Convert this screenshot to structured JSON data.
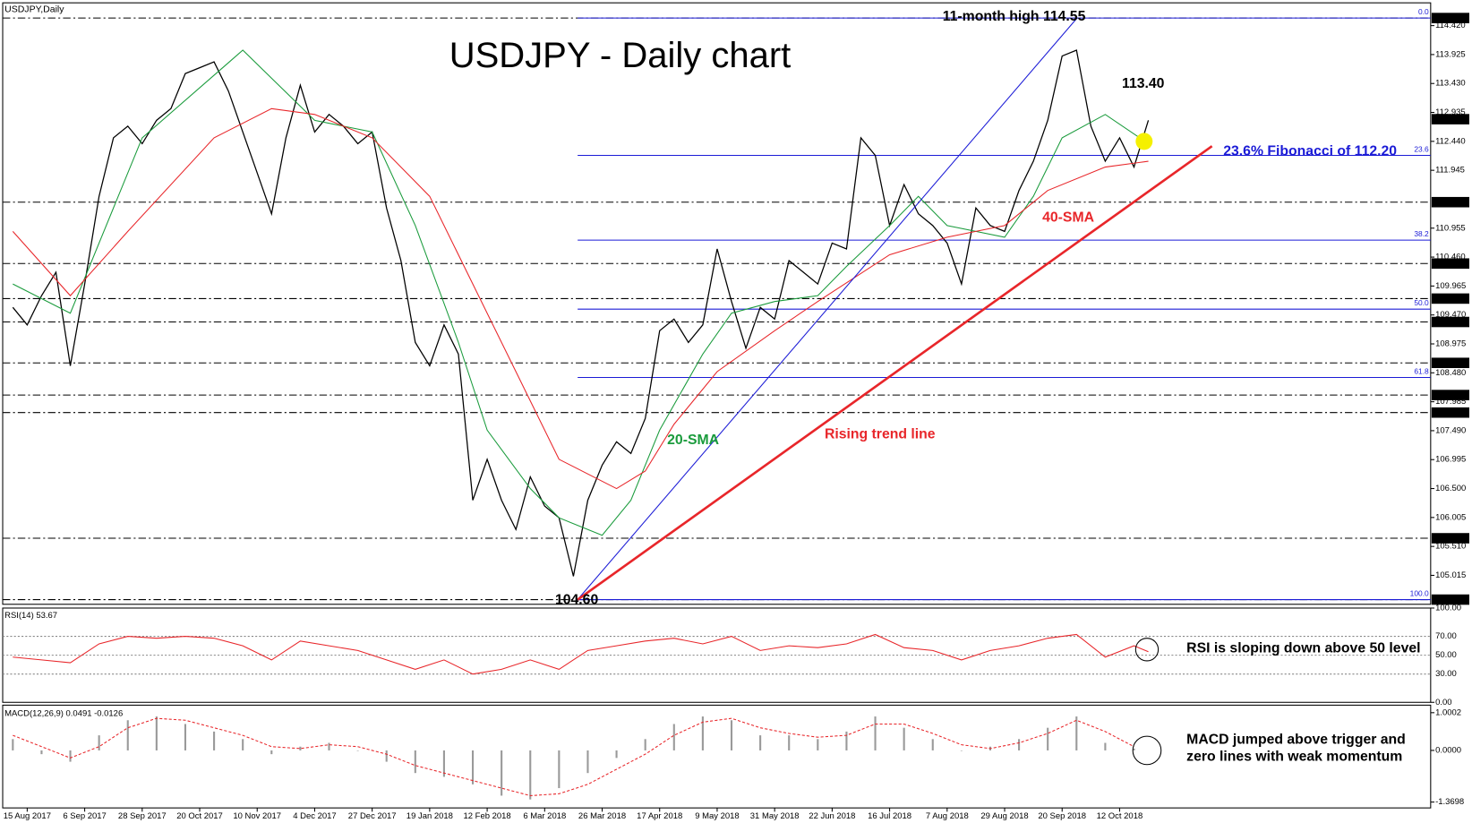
{
  "chart_data": {
    "type": "line",
    "title": "USDJPY - Daily chart",
    "symbol_label": "USDJPY,Daily",
    "categories": [
      null,
      "15 Aug 2017",
      null,
      null,
      null,
      "6 Sep 2017",
      null,
      null,
      null,
      "28 Sep 2017",
      null,
      null,
      null,
      "20 Oct 2017",
      null,
      null,
      null,
      "10 Nov 2017",
      null,
      null,
      null,
      "4 Dec 2017",
      null,
      null,
      null,
      "27 Dec 2017",
      null,
      null,
      null,
      "19 Jan 2018",
      null,
      null,
      null,
      "12 Feb 2018",
      null,
      null,
      null,
      "6 Mar 2018",
      null,
      null,
      null,
      "26 Mar 2018",
      null,
      null,
      null,
      "17 Apr 2018",
      null,
      null,
      null,
      "9 May 2018",
      null,
      null,
      null,
      "31 May 2018",
      null,
      null,
      null,
      "22 Jun 2018",
      null,
      null,
      null,
      "16 Jul 2018",
      null,
      null,
      null,
      "7 Aug 2018",
      null,
      null,
      null,
      "29 Aug 2018",
      null,
      null,
      null,
      "20 Sep 2018",
      null,
      null,
      null,
      "12 Oct 2018",
      null,
      null
    ],
    "series": [
      {
        "color": "#000000",
        "values": [
          109.6,
          109.3,
          109.8,
          110.2,
          108.6,
          110.0,
          111.5,
          112.5,
          112.7,
          112.4,
          112.8,
          113.0,
          113.6,
          113.7,
          113.8,
          113.3,
          112.6,
          111.9,
          111.2,
          112.5,
          113.4,
          112.6,
          112.9,
          112.7,
          112.4,
          112.6,
          111.3,
          110.4,
          109.0,
          108.6,
          109.3,
          108.8,
          106.3,
          107.0,
          106.3,
          105.8,
          106.7,
          106.2,
          106.0,
          105.0,
          106.3,
          106.9,
          107.3,
          107.1,
          107.7,
          109.2,
          109.4,
          109.0,
          109.3,
          110.6,
          109.7,
          108.9,
          109.6,
          109.4,
          110.4,
          110.2,
          110.0,
          110.7,
          110.6,
          112.5,
          112.2,
          111.0,
          111.7,
          111.2,
          111.0,
          110.7,
          110.0,
          111.3,
          111.0,
          110.9,
          111.6,
          112.1,
          112.8,
          113.9,
          114.0,
          112.7,
          112.1,
          112.5,
          112.0,
          112.8
        ]
      },
      {
        "name": "20-SMA",
        "color": "#1a9b3c",
        "x": [
          0,
          4,
          9,
          16,
          21,
          25,
          28,
          31,
          33,
          36,
          38,
          41,
          43,
          45,
          48,
          50,
          53,
          56,
          58,
          61,
          63,
          65,
          69,
          71,
          73,
          76,
          79
        ],
        "values": [
          110.0,
          109.5,
          112.5,
          114.0,
          112.8,
          112.6,
          111.0,
          109.0,
          107.5,
          106.5,
          106.0,
          105.7,
          106.3,
          107.5,
          108.8,
          109.5,
          109.7,
          109.8,
          110.3,
          111.0,
          111.5,
          111.0,
          110.8,
          111.5,
          112.5,
          112.9,
          112.4
        ]
      },
      {
        "name": "40-SMA",
        "color": "#e8262a",
        "x": [
          0,
          4,
          8,
          14,
          18,
          21,
          25,
          29,
          32,
          35,
          38,
          42,
          44,
          46,
          49,
          53,
          56,
          61,
          65,
          69,
          72,
          76,
          79
        ],
        "values": [
          110.9,
          109.8,
          110.9,
          112.5,
          113.0,
          112.9,
          112.5,
          111.5,
          110.0,
          108.5,
          107.0,
          106.5,
          106.8,
          107.6,
          108.5,
          109.2,
          109.7,
          110.5,
          110.8,
          111.0,
          111.6,
          112.0,
          112.1
        ]
      }
    ],
    "ylim": [
      104.52,
      114.81
    ],
    "yticks": [
      {
        "value": 114.42,
        "label": "114.420"
      },
      {
        "value": 113.925,
        "label": "113.925"
      },
      {
        "value": 113.43,
        "label": "113.430"
      },
      {
        "value": 112.935,
        "label": "112.935"
      },
      {
        "value": 112.44,
        "label": "112.440"
      },
      {
        "value": 111.945,
        "label": "111.945"
      },
      {
        "value": 110.955,
        "label": "110.955"
      },
      {
        "value": 110.46,
        "label": "110.460"
      },
      {
        "value": 109.965,
        "label": "109.965"
      },
      {
        "value": 109.47,
        "label": "109.470"
      },
      {
        "value": 108.975,
        "label": "108.975"
      },
      {
        "value": 108.48,
        "label": "108.480"
      },
      {
        "value": 107.985,
        "label": "107.985"
      },
      {
        "value": 107.49,
        "label": "107.490"
      },
      {
        "value": 106.995,
        "label": "106.995"
      },
      {
        "value": 106.5,
        "label": "106.500"
      },
      {
        "value": 106.005,
        "label": "106.005"
      },
      {
        "value": 105.51,
        "label": "105.510"
      },
      {
        "value": 105.015,
        "label": "105.015"
      }
    ],
    "levels": [
      {
        "value": 114.55,
        "label": "114.550"
      },
      {
        "value": 111.4,
        "label": "111.400"
      },
      {
        "value": 110.35,
        "label": "110.350"
      },
      {
        "value": 109.75,
        "label": "109.750"
      },
      {
        "value": 109.35,
        "label": "109.350"
      },
      {
        "value": 108.65,
        "label": "108.650"
      },
      {
        "value": 108.1,
        "label": "108.100"
      },
      {
        "value": 107.8,
        "label": "107.800"
      },
      {
        "value": 105.65,
        "label": "105.650"
      },
      {
        "value": 104.6,
        "label": "104.600"
      }
    ],
    "last_price": {
      "value": 112.819,
      "label": "112.819"
    },
    "fib_levels": [
      {
        "label": "0.0",
        "price": 114.55
      },
      {
        "label": "23.6",
        "price": 112.2
      },
      {
        "label": "38.2",
        "price": 110.75
      },
      {
        "label": "50.0",
        "price": 109.57
      },
      {
        "label": "61.8",
        "price": 108.4
      },
      {
        "label": "100.0",
        "price": 104.6
      }
    ],
    "annotations": {
      "high": "11-month high 114.55",
      "recent": "113.40",
      "fib": "23.6% Fibonacci of 112.20",
      "trend": "Rising trend line",
      "low": "104.60"
    },
    "rsi": {
      "title": "RSI(14) 53.67",
      "note": "RSI is sloping down above 50 level",
      "color": "#e8262a",
      "ylim": [
        0,
        100
      ],
      "yticks": [
        {
          "value": 100,
          "label": "100.00"
        },
        {
          "value": 70,
          "label": "70.00"
        },
        {
          "value": 50,
          "label": "50.00"
        },
        {
          "value": 30,
          "label": "30.00"
        },
        {
          "value": 0,
          "label": "0.00"
        }
      ],
      "x": [
        0,
        2,
        4,
        6,
        8,
        10,
        12,
        14,
        16,
        18,
        20,
        22,
        24,
        26,
        28,
        30,
        32,
        34,
        36,
        38,
        40,
        42,
        44,
        46,
        48,
        50,
        52,
        54,
        56,
        58,
        60,
        62,
        64,
        66,
        68,
        70,
        72,
        74,
        76,
        78,
        79
      ],
      "values": [
        48,
        45,
        42,
        62,
        70,
        68,
        70,
        68,
        60,
        45,
        65,
        60,
        55,
        45,
        35,
        45,
        30,
        35,
        45,
        35,
        55,
        60,
        65,
        68,
        62,
        70,
        55,
        60,
        58,
        62,
        72,
        58,
        55,
        45,
        55,
        60,
        68,
        72,
        48,
        60,
        53.67
      ]
    },
    "macd": {
      "title": "MACD(12,26,9) 0.0491 -0.0126",
      "note": [
        "MACD jumped above trigger and",
        "zero lines with weak momentum"
      ],
      "ylim": [
        -1.525,
        1.2
      ],
      "yticks": [
        {
          "value": 1.0002,
          "label": "1.0002"
        },
        {
          "value": 0,
          "label": "0.0000"
        },
        {
          "value": -1.3698,
          "label": "-1.3698"
        }
      ],
      "x": [
        0,
        2,
        4,
        6,
        8,
        10,
        12,
        14,
        16,
        18,
        20,
        22,
        24,
        26,
        28,
        30,
        32,
        34,
        36,
        38,
        40,
        42,
        44,
        46,
        48,
        50,
        52,
        54,
        56,
        58,
        60,
        62,
        64,
        66,
        68,
        70,
        72,
        74,
        76,
        78
      ],
      "histogram": [
        0.3,
        -0.1,
        -0.3,
        0.4,
        0.8,
        0.9,
        0.7,
        0.5,
        0.3,
        -0.1,
        0.1,
        0.2,
        0.0,
        -0.3,
        -0.6,
        -0.7,
        -0.9,
        -1.2,
        -1.3,
        -1.0,
        -0.6,
        -0.2,
        0.3,
        0.7,
        0.9,
        0.8,
        0.4,
        0.4,
        0.3,
        0.5,
        0.9,
        0.6,
        0.3,
        0.0,
        0.1,
        0.3,
        0.6,
        0.9,
        0.2,
        0.05
      ],
      "signal": [
        0.4,
        0.1,
        -0.2,
        0.1,
        0.6,
        0.85,
        0.8,
        0.6,
        0.4,
        0.1,
        0.05,
        0.15,
        0.1,
        -0.1,
        -0.4,
        -0.6,
        -0.8,
        -1.0,
        -1.2,
        -1.15,
        -0.9,
        -0.5,
        -0.1,
        0.4,
        0.75,
        0.85,
        0.6,
        0.45,
        0.35,
        0.4,
        0.7,
        0.7,
        0.45,
        0.15,
        0.05,
        0.2,
        0.45,
        0.8,
        0.5,
        0.1
      ]
    }
  }
}
